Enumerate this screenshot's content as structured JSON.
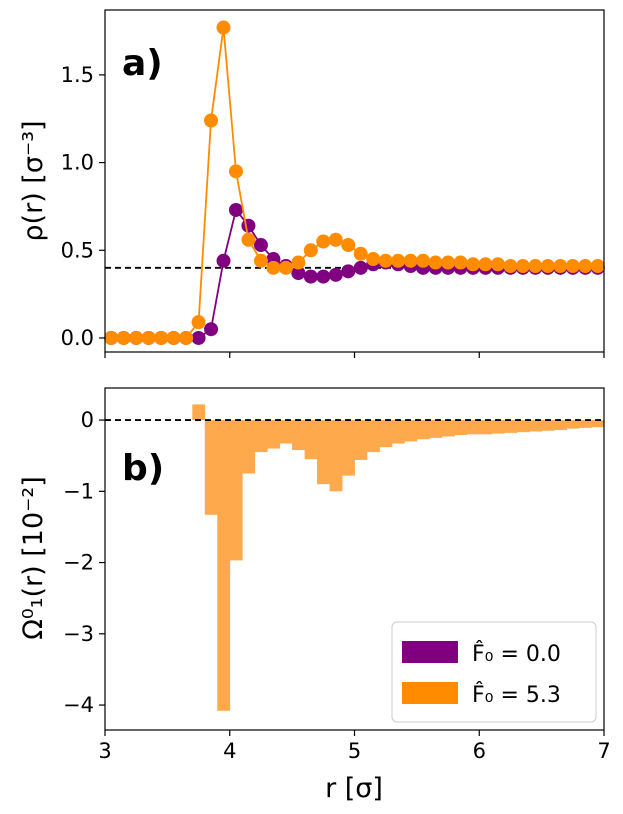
{
  "figure": {
    "xlabel": "r [σ]",
    "panels": {
      "a": {
        "label": "a)",
        "ylabel": "ρ(r) [σ⁻³]"
      },
      "b": {
        "label": "b)",
        "ylabel": "Ω⁰₁(r) [10⁻²]"
      }
    }
  },
  "colors": {
    "purple": "#800080",
    "orange": "#ff8c00",
    "orange_bar": "#ffa94d"
  },
  "chart_data": [
    {
      "type": "line",
      "panel": "a",
      "ylabel": "ρ(r) [σ⁻³]",
      "xlabel": "",
      "xlim": [
        3,
        7
      ],
      "ylim": [
        -0.08,
        1.87
      ],
      "xticks": [
        3,
        4,
        5,
        6,
        7
      ],
      "yticks": [
        0.0,
        0.5,
        1.0,
        1.5
      ],
      "ytick_labels": [
        "0.0",
        "0.5",
        "1.0",
        "1.5"
      ],
      "reference_line": {
        "y": 0.4,
        "style": "dashed",
        "color": "#000000"
      },
      "x": [
        3.05,
        3.15,
        3.25,
        3.35,
        3.45,
        3.55,
        3.65,
        3.75,
        3.85,
        3.95,
        4.05,
        4.15,
        4.25,
        4.35,
        4.45,
        4.55,
        4.65,
        4.75,
        4.85,
        4.95,
        5.05,
        5.15,
        5.25,
        5.35,
        5.45,
        5.55,
        5.65,
        5.75,
        5.85,
        5.95,
        6.05,
        6.15,
        6.25,
        6.35,
        6.45,
        6.55,
        6.65,
        6.75,
        6.85,
        6.95
      ],
      "series": [
        {
          "name": "F̂₀ = 0.0",
          "color": "#800080",
          "values": [
            0.0,
            0.0,
            0.0,
            0.0,
            0.0,
            0.0,
            0.0,
            0.0,
            0.05,
            0.44,
            0.73,
            0.64,
            0.53,
            0.45,
            0.41,
            0.37,
            0.35,
            0.35,
            0.36,
            0.38,
            0.4,
            0.42,
            0.43,
            0.42,
            0.41,
            0.4,
            0.4,
            0.4,
            0.4,
            0.4,
            0.4,
            0.4,
            0.4,
            0.4,
            0.4,
            0.4,
            0.4,
            0.4,
            0.4,
            0.4
          ]
        },
        {
          "name": "F̂₀ = 5.3",
          "color": "#ff8c00",
          "values": [
            0.0,
            0.0,
            0.0,
            0.0,
            0.0,
            0.0,
            0.0,
            0.09,
            1.24,
            1.77,
            0.95,
            0.56,
            0.44,
            0.4,
            0.4,
            0.43,
            0.5,
            0.55,
            0.56,
            0.53,
            0.48,
            0.45,
            0.44,
            0.44,
            0.44,
            0.44,
            0.43,
            0.43,
            0.43,
            0.42,
            0.42,
            0.42,
            0.41,
            0.41,
            0.41,
            0.41,
            0.41,
            0.41,
            0.41,
            0.41
          ]
        }
      ]
    },
    {
      "type": "bar",
      "panel": "b",
      "ylabel": "Ω⁰₁(r) [10⁻²]",
      "xlabel": "r [σ]",
      "xlim": [
        3,
        7
      ],
      "ylim": [
        -4.35,
        0.45
      ],
      "xticks": [
        3,
        4,
        5,
        6,
        7
      ],
      "yticks": [
        0,
        -1,
        -2,
        -3,
        -4
      ],
      "ytick_labels": [
        "0",
        "−1",
        "−2",
        "−3",
        "−4"
      ],
      "reference_line": {
        "y": 0,
        "style": "dashed",
        "color": "#000000"
      },
      "bin_width": 0.1,
      "bin_centers": [
        3.75,
        3.85,
        3.95,
        4.05,
        4.15,
        4.25,
        4.35,
        4.45,
        4.55,
        4.65,
        4.75,
        4.85,
        4.95,
        5.05,
        5.15,
        5.25,
        5.35,
        5.45,
        5.55,
        5.65,
        5.75,
        5.85,
        5.95,
        6.05,
        6.15,
        6.25,
        6.35,
        6.45,
        6.55,
        6.65,
        6.75,
        6.85,
        6.95
      ],
      "series": [
        {
          "name": "F̂₀ = 0.0",
          "color": "#800080",
          "values": [
            0,
            0,
            0,
            0,
            0,
            0,
            0,
            0,
            0,
            0,
            0,
            0,
            0,
            0,
            0,
            0,
            0,
            0,
            0,
            0,
            0,
            0,
            0,
            0,
            0,
            0,
            0,
            0,
            0,
            0,
            0,
            0,
            0
          ]
        },
        {
          "name": "F̂₀ = 5.3",
          "color": "#ffa94d",
          "values": [
            0.22,
            -1.33,
            -4.08,
            -1.97,
            -0.75,
            -0.45,
            -0.4,
            -0.33,
            -0.42,
            -0.55,
            -0.9,
            -1.0,
            -0.78,
            -0.56,
            -0.45,
            -0.38,
            -0.33,
            -0.3,
            -0.27,
            -0.25,
            -0.23,
            -0.21,
            -0.2,
            -0.2,
            -0.19,
            -0.18,
            -0.17,
            -0.16,
            -0.15,
            -0.14,
            -0.12,
            -0.11,
            -0.1
          ]
        }
      ]
    }
  ],
  "legend": {
    "position": "lower-right",
    "entries": [
      {
        "label": "F̂₀ = 0.0",
        "color": "#800080"
      },
      {
        "label": "F̂₀ = 5.3",
        "color": "#ff8c00"
      }
    ]
  }
}
